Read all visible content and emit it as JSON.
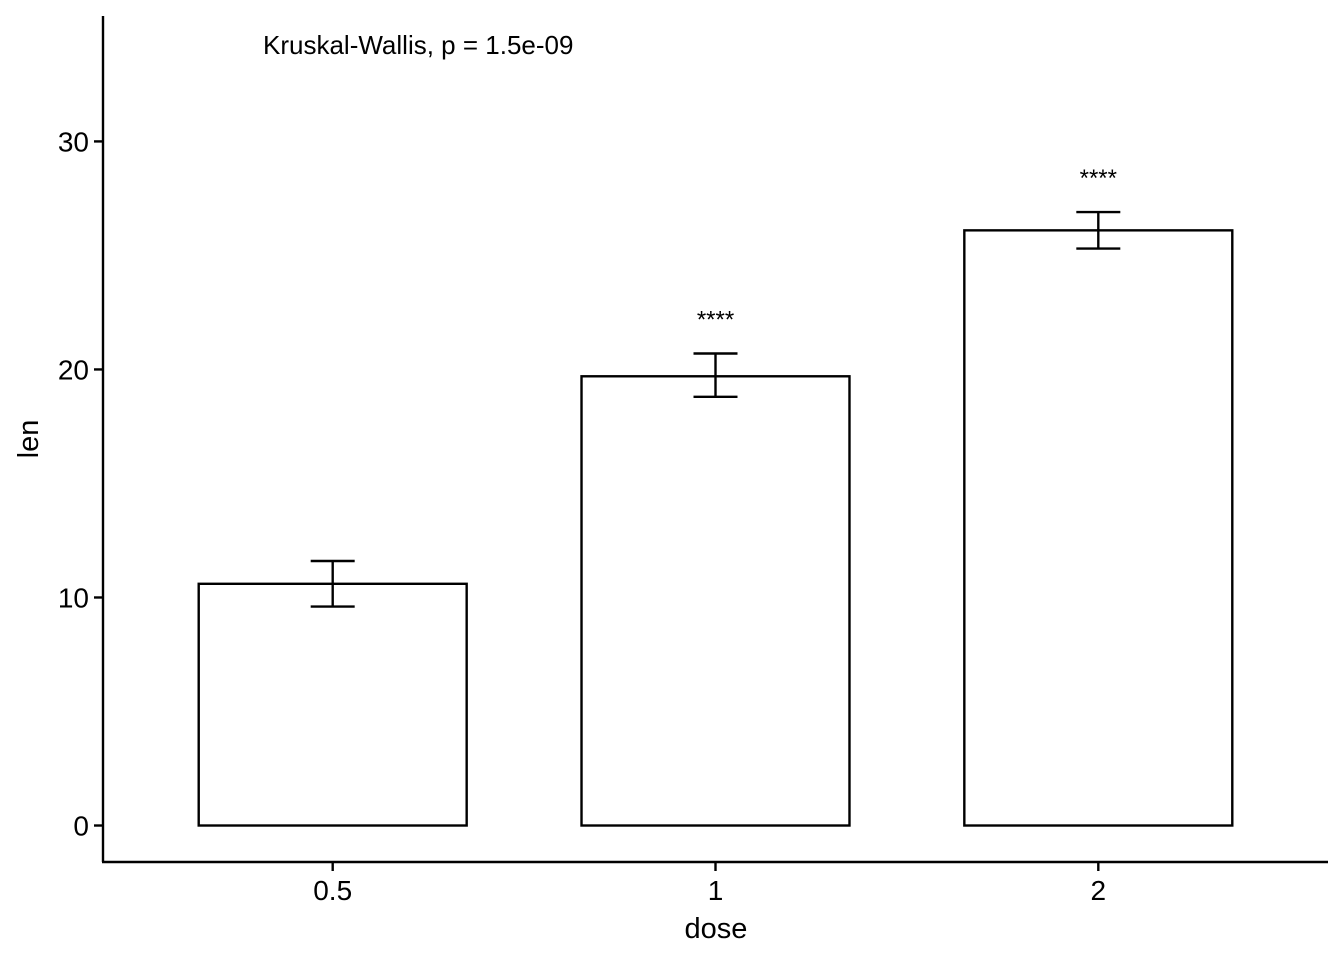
{
  "chart_data": {
    "type": "bar",
    "xlabel": "dose",
    "ylabel": "len",
    "categories": [
      "0.5",
      "1",
      "2"
    ],
    "values": [
      10.6,
      19.7,
      26.1
    ],
    "error_bars": [
      {
        "low": 9.6,
        "high": 11.6
      },
      {
        "low": 18.8,
        "high": 20.7
      },
      {
        "low": 25.3,
        "high": 26.9
      }
    ],
    "significance_labels": [
      "",
      "****",
      "****"
    ],
    "annotation": "Kruskal-Wallis, p = 1.5e-09",
    "yticks": [
      "0",
      "10",
      "20",
      "30"
    ],
    "ylim": [
      -1.6,
      35.5
    ],
    "grid": false,
    "legend": "none",
    "colors": {
      "bar_fill": "#ffffff",
      "bar_outline": "#000000",
      "text": "#000000"
    }
  }
}
